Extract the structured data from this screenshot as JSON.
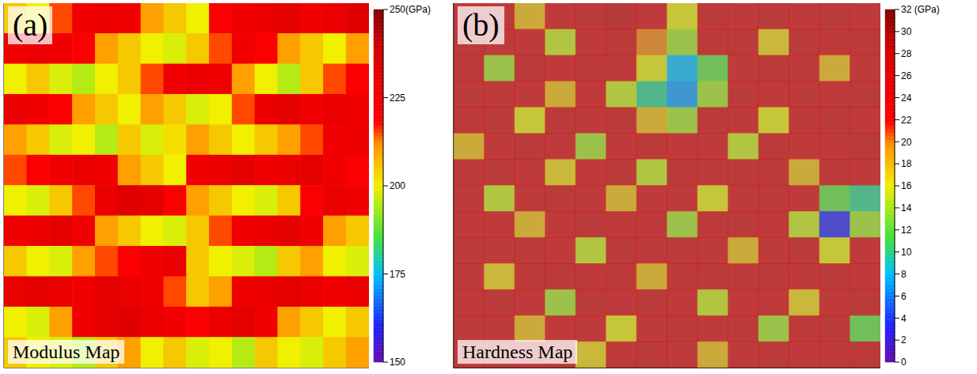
{
  "chart_data": [
    {
      "type": "heatmap",
      "panel": "(a)",
      "title": "Modulus Map",
      "tick_labels": false,
      "cells": [
        [
          205,
          200,
          215,
          225,
          228,
          225,
          210,
          205,
          200,
          220,
          225,
          228,
          230,
          225,
          228,
          232
        ],
        [
          225,
          228,
          225,
          220,
          210,
          205,
          200,
          198,
          205,
          215,
          225,
          220,
          210,
          205,
          200,
          210
        ],
        [
          200,
          205,
          198,
          195,
          200,
          205,
          215,
          225,
          228,
          225,
          210,
          200,
          195,
          205,
          215,
          220
        ],
        [
          228,
          225,
          220,
          210,
          205,
          200,
          210,
          205,
          198,
          200,
          215,
          228,
          230,
          225,
          228,
          225
        ],
        [
          210,
          205,
          198,
          200,
          195,
          205,
          198,
          202,
          210,
          205,
          200,
          205,
          210,
          215,
          225,
          228
        ],
        [
          215,
          220,
          225,
          228,
          225,
          210,
          205,
          200,
          225,
          228,
          230,
          225,
          228,
          230,
          225,
          220
        ],
        [
          200,
          198,
          205,
          215,
          228,
          232,
          230,
          220,
          210,
          205,
          200,
          198,
          205,
          220,
          228,
          225
        ],
        [
          225,
          228,
          230,
          225,
          210,
          205,
          200,
          198,
          205,
          215,
          225,
          228,
          230,
          225,
          210,
          205
        ],
        [
          205,
          200,
          198,
          210,
          215,
          220,
          225,
          228,
          205,
          200,
          198,
          195,
          205,
          210,
          200,
          198
        ],
        [
          228,
          230,
          228,
          225,
          230,
          228,
          225,
          215,
          205,
          210,
          225,
          228,
          230,
          228,
          225,
          228
        ],
        [
          200,
          198,
          210,
          225,
          230,
          232,
          228,
          225,
          220,
          228,
          230,
          225,
          210,
          205,
          200,
          205
        ],
        [
          205,
          200,
          198,
          195,
          205,
          210,
          200,
          205,
          198,
          200,
          195,
          205,
          200,
          198,
          205,
          210
        ]
      ],
      "colorbar": {
        "range": [
          150,
          250
        ],
        "ticks": [
          150,
          175,
          200,
          225,
          {
            "value": 250,
            "label": "250(GPa)"
          }
        ]
      }
    },
    {
      "type": "heatmap",
      "panel": "(b)",
      "title": "Hardness Map",
      "tick_labels": false,
      "cells": [
        [
          26,
          27,
          18,
          26,
          27,
          28,
          26,
          16,
          27,
          26,
          27,
          26,
          27,
          26
        ],
        [
          27,
          26,
          26,
          15,
          26,
          27,
          20,
          14,
          26,
          27,
          17,
          27,
          26,
          27
        ],
        [
          26,
          14,
          27,
          26,
          27,
          26,
          16,
          8,
          12,
          26,
          27,
          26,
          18,
          26
        ],
        [
          27,
          26,
          26,
          18,
          26,
          15,
          10,
          7,
          14,
          27,
          26,
          27,
          26,
          27
        ],
        [
          26,
          27,
          16,
          27,
          26,
          27,
          18,
          14,
          27,
          26,
          16,
          26,
          27,
          26
        ],
        [
          18,
          26,
          27,
          26,
          14,
          26,
          27,
          26,
          26,
          15,
          27,
          26,
          26,
          27
        ],
        [
          26,
          27,
          26,
          17,
          26,
          27,
          15,
          27,
          26,
          27,
          26,
          18,
          26,
          26
        ],
        [
          27,
          15,
          26,
          27,
          26,
          18,
          26,
          26,
          16,
          26,
          27,
          26,
          12,
          10
        ],
        [
          26,
          26,
          18,
          26,
          27,
          26,
          26,
          14,
          26,
          27,
          26,
          15,
          3,
          14
        ],
        [
          27,
          26,
          27,
          26,
          15,
          27,
          26,
          27,
          26,
          18,
          26,
          27,
          16,
          26
        ],
        [
          26,
          17,
          26,
          27,
          26,
          26,
          18,
          26,
          27,
          26,
          27,
          26,
          27,
          26
        ],
        [
          26,
          27,
          26,
          14,
          27,
          26,
          27,
          26,
          15,
          26,
          26,
          17,
          26,
          27
        ],
        [
          27,
          26,
          18,
          26,
          26,
          16,
          26,
          27,
          26,
          27,
          14,
          26,
          27,
          12
        ],
        [
          26,
          27,
          26,
          27,
          17,
          26,
          27,
          26,
          18,
          26,
          27,
          26,
          26,
          27
        ]
      ],
      "colorbar": {
        "range": [
          0,
          32
        ],
        "ticks": [
          0,
          2,
          4,
          6,
          8,
          10,
          12,
          14,
          16,
          18,
          20,
          22,
          24,
          26,
          28,
          30,
          {
            "value": 32,
            "label": "32 (GPa)"
          }
        ]
      }
    }
  ]
}
